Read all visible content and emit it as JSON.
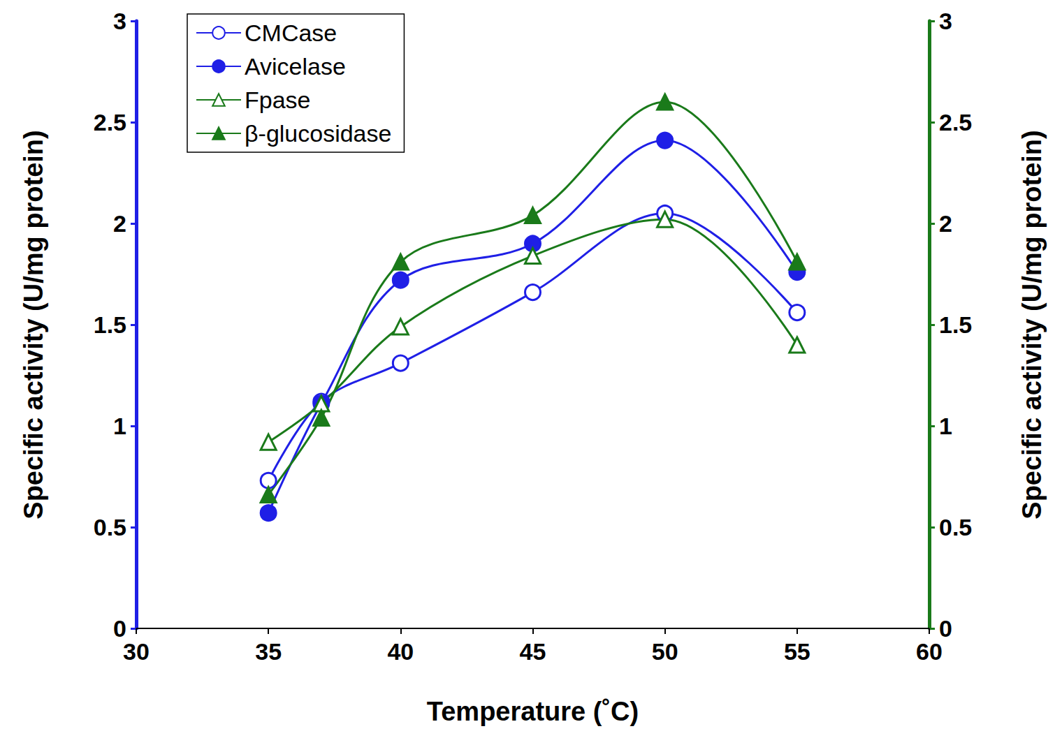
{
  "chart_data": {
    "type": "line",
    "xlabel": "Temperature (˚C)",
    "ylabel": "Specific activity (U/mg protein)",
    "y2label": "Specific activity (U/mg protein)",
    "x": [
      35,
      37,
      40,
      45,
      50,
      55
    ],
    "xlim": [
      30,
      60
    ],
    "xticks": [
      30,
      35,
      40,
      45,
      50,
      55,
      60
    ],
    "ylim": [
      0,
      3
    ],
    "yticks": [
      0,
      0.5,
      1,
      1.5,
      2,
      2.5,
      3
    ],
    "y2lim": [
      0,
      3
    ],
    "y2ticks": [
      0,
      0.5,
      1,
      1.5,
      2,
      2.5,
      3
    ],
    "grid": false,
    "legend": "upper left",
    "series": [
      {
        "name": "CMCase",
        "color": "#1f1fe6",
        "marker": "circle_open",
        "line_style": "solid",
        "axis": "y",
        "values": [
          0.73,
          1.12,
          1.31,
          1.66,
          2.05,
          1.56
        ]
      },
      {
        "name": "Avicelase",
        "color": "#1f1fe6",
        "marker": "circle",
        "line_style": "solid",
        "axis": "y",
        "values": [
          0.57,
          1.11,
          1.72,
          1.9,
          2.41,
          1.76
        ]
      },
      {
        "name": "Fpase",
        "color": "#1a7a1a",
        "marker": "triangle_open",
        "line_style": "solid",
        "axis": "y2",
        "values": [
          0.92,
          1.11,
          1.49,
          1.84,
          2.02,
          1.4
        ]
      },
      {
        "name": "β-glucosidase",
        "color": "#1a7a1a",
        "marker": "triangle",
        "line_style": "solid",
        "axis": "y2",
        "values": [
          0.66,
          1.04,
          1.81,
          2.04,
          2.6,
          1.81
        ]
      }
    ]
  }
}
